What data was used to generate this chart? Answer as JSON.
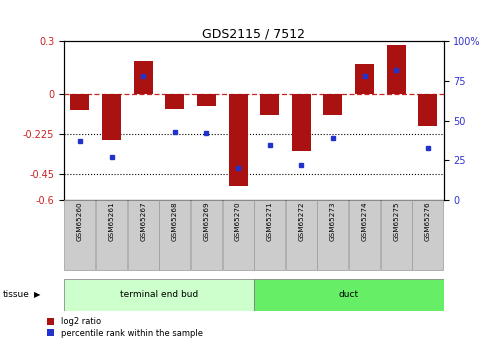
{
  "title": "GDS2115 / 7512",
  "samples": [
    "GSM65260",
    "GSM65261",
    "GSM65267",
    "GSM65268",
    "GSM65269",
    "GSM65270",
    "GSM65271",
    "GSM65272",
    "GSM65273",
    "GSM65274",
    "GSM65275",
    "GSM65276"
  ],
  "log2_ratio": [
    -0.09,
    -0.26,
    0.19,
    -0.085,
    -0.065,
    -0.52,
    -0.12,
    -0.32,
    -0.12,
    0.17,
    0.28,
    -0.18
  ],
  "percentile_rank": [
    37,
    27,
    78,
    43,
    42,
    20,
    35,
    22,
    39,
    78,
    82,
    33
  ],
  "groups": [
    {
      "label": "terminal end bud",
      "start": 0,
      "end": 5,
      "color": "#ccffcc"
    },
    {
      "label": "duct",
      "start": 6,
      "end": 11,
      "color": "#66ee66"
    }
  ],
  "bar_color": "#aa1111",
  "dot_color": "#2233cc",
  "ylim_left": [
    -0.6,
    0.3
  ],
  "ylim_right": [
    0,
    100
  ],
  "yticks_left": [
    0.3,
    0.0,
    -0.225,
    -0.45,
    -0.6
  ],
  "yticks_right": [
    100,
    75,
    50,
    25,
    0
  ],
  "hline_zero_color": "#cc2222",
  "hlines_dotted": [
    -0.225,
    -0.45
  ],
  "tissue_label": "tissue",
  "legend_log2": "log2 ratio",
  "legend_pct": "percentile rank within the sample",
  "bg_color": "#ffffff",
  "label_col_left": "#cc2222",
  "label_col_right": "#3333cc",
  "sample_box_color": "#cccccc",
  "bar_width": 0.6
}
